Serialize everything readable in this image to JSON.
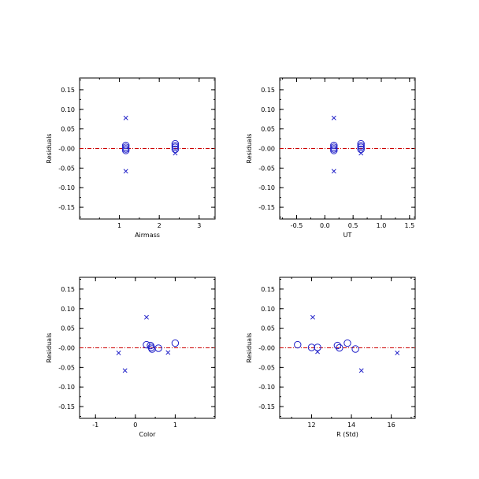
{
  "colors": {
    "marker": "#2020c8",
    "zero_line": "#cc0000",
    "axis": "#000000"
  },
  "chart_data": [
    {
      "type": "scatter",
      "xlabel": "Airmass",
      "ylabel": "Residuals",
      "xlim": [
        0,
        3.4
      ],
      "ylim": [
        -0.18,
        0.18
      ],
      "xticks": [
        1,
        2,
        3
      ],
      "yticks": [
        -0.15,
        -0.1,
        -0.05,
        0.0,
        0.05,
        0.1,
        0.15
      ],
      "ytick_labels": [
        "-0.15",
        "-0.10",
        "-0.05",
        "-0.00",
        "0.05",
        "0.10",
        "0.15"
      ],
      "zero_line": true,
      "series": [
        {
          "marker": "circle",
          "points": [
            [
              1.16,
              0.008
            ],
            [
              1.16,
              0.003
            ],
            [
              1.16,
              -0.001
            ],
            [
              1.16,
              -0.005
            ],
            [
              2.4,
              0.012
            ],
            [
              2.4,
              0.007
            ],
            [
              2.4,
              0.003
            ],
            [
              2.4,
              -0.002
            ]
          ]
        },
        {
          "marker": "x",
          "points": [
            [
              1.16,
              0.078
            ],
            [
              1.16,
              -0.058
            ],
            [
              2.4,
              -0.012
            ]
          ]
        }
      ]
    },
    {
      "type": "scatter",
      "xlabel": "UT",
      "ylabel": "Residuals",
      "xlim": [
        -0.8,
        1.6
      ],
      "ylim": [
        -0.18,
        0.18
      ],
      "xticks": [
        -0.5,
        0.0,
        0.5,
        1.0,
        1.5
      ],
      "xtick_labels": [
        "-0.5",
        "0.0",
        "0.5",
        "1.0",
        "1.5"
      ],
      "yticks": [
        -0.15,
        -0.1,
        -0.05,
        0.0,
        0.05,
        0.1,
        0.15
      ],
      "ytick_labels": [
        "-0.15",
        "-0.10",
        "-0.05",
        "-0.00",
        "0.05",
        "0.10",
        "0.15"
      ],
      "zero_line": true,
      "series": [
        {
          "marker": "circle",
          "points": [
            [
              0.16,
              0.008
            ],
            [
              0.16,
              0.003
            ],
            [
              0.16,
              -0.001
            ],
            [
              0.16,
              -0.005
            ],
            [
              0.64,
              0.012
            ],
            [
              0.64,
              0.007
            ],
            [
              0.64,
              0.003
            ],
            [
              0.64,
              -0.002
            ]
          ]
        },
        {
          "marker": "x",
          "points": [
            [
              0.16,
              0.078
            ],
            [
              0.16,
              -0.058
            ],
            [
              0.64,
              -0.012
            ]
          ]
        }
      ]
    },
    {
      "type": "scatter",
      "xlabel": "Color",
      "ylabel": "Residuals",
      "xlim": [
        -1.4,
        2.0
      ],
      "ylim": [
        -0.18,
        0.18
      ],
      "xticks": [
        -1,
        0,
        1
      ],
      "yticks": [
        -0.15,
        -0.1,
        -0.05,
        0.0,
        0.05,
        0.1,
        0.15
      ],
      "ytick_labels": [
        "-0.15",
        "-0.10",
        "-0.05",
        "-0.00",
        "0.05",
        "0.10",
        "0.15"
      ],
      "zero_line": true,
      "series": [
        {
          "marker": "circle",
          "points": [
            [
              0.28,
              0.008
            ],
            [
              0.38,
              0.006
            ],
            [
              0.4,
              0.001
            ],
            [
              0.42,
              -0.003
            ],
            [
              0.58,
              -0.001
            ],
            [
              1.0,
              0.012
            ]
          ]
        },
        {
          "marker": "x",
          "points": [
            [
              -0.42,
              -0.013
            ],
            [
              -0.26,
              -0.058
            ],
            [
              0.28,
              0.078
            ],
            [
              0.82,
              -0.012
            ]
          ]
        }
      ]
    },
    {
      "type": "scatter",
      "xlabel": "R (Std)",
      "ylabel": "Residuals",
      "xlim": [
        10.4,
        17.2
      ],
      "ylim": [
        -0.18,
        0.18
      ],
      "xticks": [
        12,
        14,
        16
      ],
      "yticks": [
        -0.15,
        -0.1,
        -0.05,
        0.0,
        0.05,
        0.1,
        0.15
      ],
      "ytick_labels": [
        "-0.15",
        "-0.10",
        "-0.05",
        "-0.00",
        "0.05",
        "0.10",
        "0.15"
      ],
      "zero_line": true,
      "series": [
        {
          "marker": "circle",
          "points": [
            [
              11.3,
              0.008
            ],
            [
              12.0,
              0.001
            ],
            [
              12.3,
              0.001
            ],
            [
              13.3,
              0.006
            ],
            [
              13.4,
              0.0
            ],
            [
              13.8,
              0.012
            ],
            [
              14.2,
              -0.003
            ]
          ]
        },
        {
          "marker": "x",
          "points": [
            [
              12.06,
              0.078
            ],
            [
              12.3,
              -0.01
            ],
            [
              14.5,
              -0.058
            ],
            [
              16.3,
              -0.013
            ]
          ]
        }
      ]
    }
  ]
}
